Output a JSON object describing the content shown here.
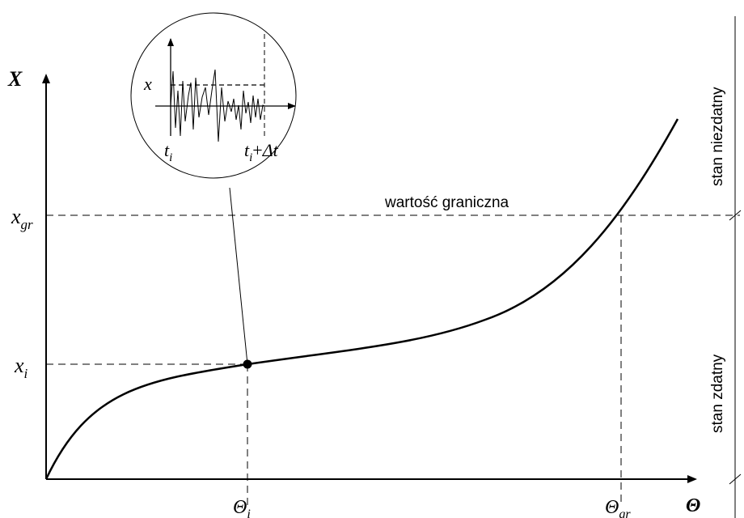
{
  "axes": {
    "y_label": "X",
    "x_label": "Θ",
    "y_ticks": {
      "xgr_base": "x",
      "xgr_sub": "gr",
      "xi_base": "x",
      "xi_sub": "i"
    },
    "x_ticks": {
      "theta_i_base": "Θ",
      "theta_i_sub": "i",
      "theta_gr_base": "Θ",
      "theta_gr_sub": "gr"
    }
  },
  "threshold_label": "wartość graniczna",
  "states": {
    "unfit": "stan niezdatny",
    "fit": "stan zdatny"
  },
  "inset": {
    "x_label": "x",
    "t_start_base": "t",
    "t_start_sub": "i",
    "t_end_base": "t",
    "t_end_sub": "i",
    "t_end_suffix": "+",
    "t_end_delta": "Δt"
  },
  "colors": {
    "line": "#000000",
    "background": "#ffffff"
  }
}
